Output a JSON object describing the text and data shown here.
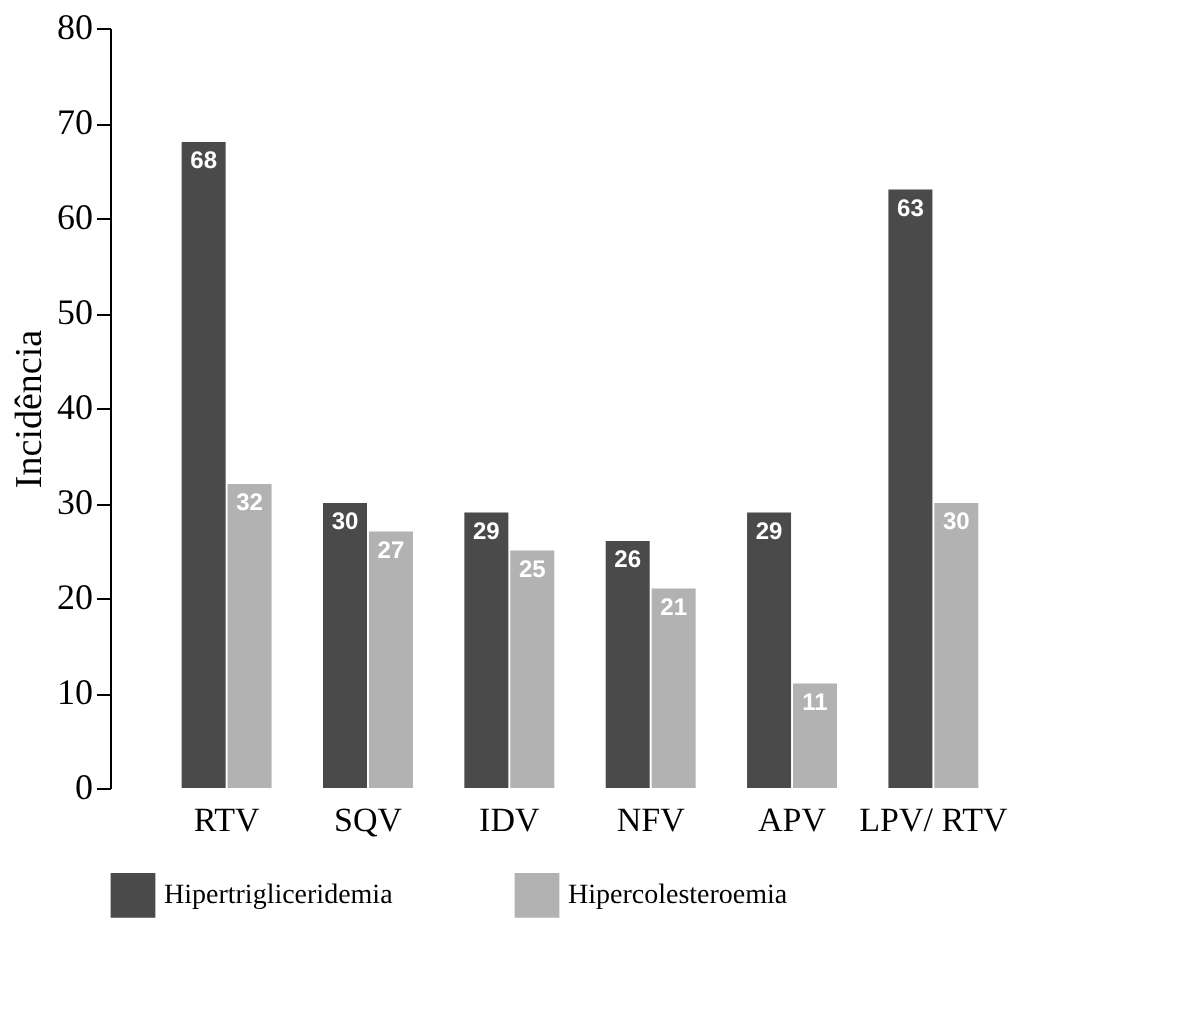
{
  "chart_data": {
    "type": "bar",
    "ylabel": "Incidência",
    "categories": [
      "RTV",
      "SQV",
      "IDV",
      "NFV",
      "APV",
      "LPV/ RTV"
    ],
    "series": [
      {
        "name": "Hipertrigliceridemia",
        "color": "#4a4a4a",
        "values": [
          68,
          30,
          29,
          26,
          29,
          63
        ]
      },
      {
        "name": "Hipercolesteroemia",
        "color": "#b2b2b2",
        "values": [
          32,
          27,
          25,
          21,
          11,
          30
        ]
      }
    ],
    "ylim": [
      0,
      80
    ],
    "yticks": [
      0,
      10,
      20,
      30,
      40,
      50,
      60,
      70,
      80
    ],
    "data_labels": true,
    "grid": false,
    "legend": "bottom"
  }
}
